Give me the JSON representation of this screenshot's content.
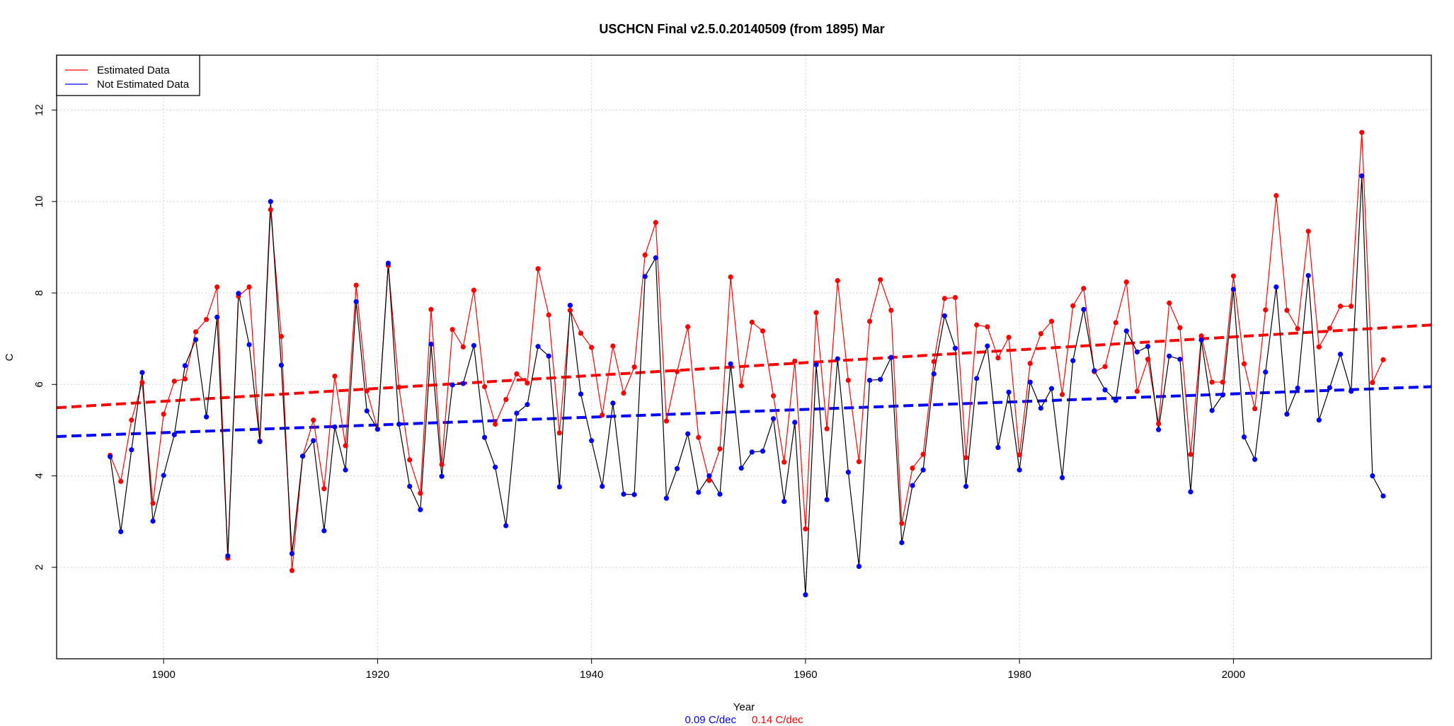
{
  "chart_data": {
    "type": "line",
    "title": "USCHCN Final v2.5.0.20140509 (from 1895) Mar",
    "xlabel": "Year",
    "ylabel": "C",
    "xlim": [
      1890,
      2018.5
    ],
    "ylim": [
      0,
      13.2
    ],
    "x_ticks": [
      1900,
      1920,
      1940,
      1960,
      1980,
      2000
    ],
    "y_ticks": [
      2,
      4,
      6,
      8,
      10,
      12
    ],
    "grid": true,
    "legend": {
      "position": "top-left",
      "entries": [
        {
          "label": "Estimated Data",
          "color": "#ff0000"
        },
        {
          "label": "Not Estimated Data",
          "color": "#0000ff"
        }
      ]
    },
    "trend_labels": [
      {
        "text": "0.09 C/dec",
        "color": "#0000ff"
      },
      {
        "text": "0.14 C/dec",
        "color": "#ff0000"
      }
    ],
    "series": [
      {
        "name": "Estimated Data",
        "color": "#ff0000",
        "x": [
          1895,
          1896,
          1897,
          1898,
          1899,
          1900,
          1901,
          1902,
          1903,
          1904,
          1905,
          1906,
          1907,
          1908,
          1909,
          1910,
          1911,
          1912,
          1913,
          1914,
          1915,
          1916,
          1917,
          1918,
          1919,
          1920,
          1921,
          1922,
          1923,
          1924,
          1925,
          1926,
          1927,
          1928,
          1929,
          1930,
          1931,
          1932,
          1933,
          1934,
          1935,
          1936,
          1937,
          1938,
          1939,
          1940,
          1941,
          1942,
          1943,
          1944,
          1945,
          1946,
          1947,
          1948,
          1949,
          1950,
          1951,
          1952,
          1953,
          1954,
          1955,
          1956,
          1957,
          1958,
          1959,
          1960,
          1961,
          1962,
          1963,
          1964,
          1965,
          1966,
          1967,
          1968,
          1969,
          1970,
          1971,
          1972,
          1973,
          1974,
          1975,
          1976,
          1977,
          1978,
          1979,
          1980,
          1981,
          1982,
          1983,
          1984,
          1985,
          1986,
          1987,
          1988,
          1989,
          1990,
          1991,
          1992,
          1993,
          1994,
          1995,
          1996,
          1997,
          1998,
          1999,
          2000,
          2001,
          2002,
          2003,
          2004,
          2005,
          2006,
          2007,
          2008,
          2009,
          2010,
          2011,
          2012,
          2013,
          2014
        ],
        "values": [
          4.45,
          3.88,
          5.22,
          6.04,
          3.4,
          5.35,
          6.07,
          6.12,
          7.15,
          7.42,
          8.13,
          2.2,
          7.93,
          8.13,
          4.76,
          9.82,
          7.05,
          1.93,
          4.43,
          5.22,
          3.72,
          6.18,
          4.66,
          8.17,
          5.86,
          5.02,
          8.6,
          5.94,
          4.35,
          3.62,
          7.64,
          4.25,
          7.2,
          6.82,
          8.06,
          5.95,
          5.13,
          5.67,
          6.23,
          6.03,
          8.53,
          7.52,
          4.94,
          7.62,
          7.12,
          6.81,
          5.33,
          6.84,
          5.81,
          6.38,
          8.83,
          9.54,
          5.2,
          6.28,
          7.26,
          4.84,
          3.9,
          4.59,
          8.35,
          5.97,
          7.36,
          7.17,
          5.75,
          4.3,
          6.51,
          2.84,
          7.57,
          5.03,
          8.27,
          6.09,
          4.31,
          7.38,
          8.29,
          7.62,
          2.96,
          4.17,
          4.47,
          6.5,
          7.88,
          7.9,
          4.4,
          7.3,
          7.26,
          6.58,
          7.03,
          4.46,
          6.46,
          7.11,
          7.38,
          5.78,
          7.72,
          8.1,
          6.28,
          6.39,
          7.35,
          8.24,
          5.85,
          6.55,
          5.14,
          7.78,
          7.24,
          4.47,
          7.06,
          6.05,
          6.05,
          8.37,
          6.45,
          5.47,
          7.63,
          10.13,
          7.62,
          7.22,
          9.35,
          6.82,
          7.23,
          7.71,
          7.71,
          11.51,
          6.04,
          6.54
        ]
      },
      {
        "name": "Not Estimated Data",
        "color": "#0000ff",
        "x": [
          1895,
          1896,
          1897,
          1898,
          1899,
          1900,
          1901,
          1902,
          1903,
          1904,
          1905,
          1906,
          1907,
          1908,
          1909,
          1910,
          1911,
          1912,
          1913,
          1914,
          1915,
          1916,
          1917,
          1918,
          1919,
          1920,
          1921,
          1922,
          1923,
          1924,
          1925,
          1926,
          1927,
          1928,
          1929,
          1930,
          1931,
          1932,
          1933,
          1934,
          1935,
          1936,
          1937,
          1938,
          1939,
          1940,
          1941,
          1942,
          1943,
          1944,
          1945,
          1946,
          1947,
          1948,
          1949,
          1950,
          1951,
          1952,
          1953,
          1954,
          1955,
          1956,
          1957,
          1958,
          1959,
          1960,
          1961,
          1962,
          1963,
          1964,
          1965,
          1966,
          1967,
          1968,
          1969,
          1970,
          1971,
          1972,
          1973,
          1974,
          1975,
          1976,
          1977,
          1978,
          1979,
          1980,
          1981,
          1982,
          1983,
          1984,
          1985,
          1986,
          1987,
          1988,
          1989,
          1990,
          1991,
          1992,
          1993,
          1994,
          1995,
          1996,
          1997,
          1998,
          1999,
          2000,
          2001,
          2002,
          2003,
          2004,
          2005,
          2006,
          2007,
          2008,
          2009,
          2010,
          2011,
          2012,
          2013,
          2014
        ],
        "values": [
          4.42,
          2.78,
          4.57,
          6.26,
          3.01,
          4.01,
          4.9,
          6.41,
          6.98,
          5.29,
          7.47,
          2.25,
          7.99,
          6.87,
          4.75,
          10.0,
          6.42,
          2.3,
          4.43,
          4.77,
          2.8,
          5.07,
          4.13,
          7.81,
          5.42,
          5.02,
          8.65,
          5.13,
          3.77,
          3.26,
          6.88,
          3.99,
          5.99,
          6.02,
          6.85,
          4.84,
          4.19,
          2.91,
          5.37,
          5.56,
          6.83,
          6.62,
          3.76,
          7.73,
          5.79,
          4.77,
          3.77,
          5.59,
          3.6,
          3.59,
          8.36,
          8.77,
          3.51,
          4.16,
          4.92,
          3.64,
          4.0,
          3.6,
          6.45,
          4.17,
          4.52,
          4.54,
          5.25,
          3.44,
          5.17,
          1.4,
          6.43,
          3.48,
          6.56,
          4.08,
          2.02,
          6.09,
          6.11,
          6.59,
          2.54,
          3.79,
          4.13,
          6.23,
          7.5,
          6.79,
          3.77,
          6.13,
          6.84,
          4.62,
          5.83,
          4.13,
          6.05,
          5.48,
          5.91,
          3.96,
          6.52,
          7.64,
          6.3,
          5.88,
          5.65,
          7.17,
          6.71,
          6.83,
          5.01,
          6.62,
          6.55,
          3.65,
          6.97,
          5.43,
          5.77,
          8.08,
          4.85,
          4.36,
          6.27,
          8.13,
          5.35,
          5.92,
          8.38,
          5.22,
          5.93,
          6.66,
          5.85,
          10.56,
          4.0,
          3.56
        ]
      }
    ],
    "trend_lines": [
      {
        "name": "Estimated Data trend",
        "color": "#ff0000",
        "x": [
          1890,
          2018.5
        ],
        "y": [
          5.49,
          7.3
        ]
      },
      {
        "name": "Not Estimated Data trend",
        "color": "#0000ff",
        "x": [
          1890,
          2018.5
        ],
        "y": [
          4.86,
          5.95
        ]
      }
    ]
  }
}
